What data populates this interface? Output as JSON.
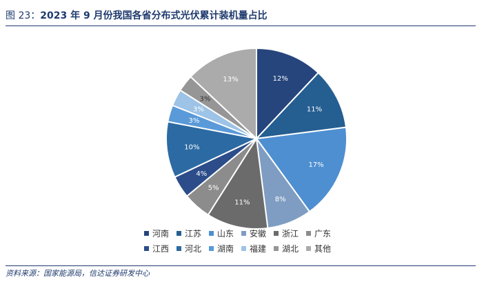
{
  "header": {
    "prefix": "图 23：",
    "title": "2023 年 9 月份我国各省分布式光伏累计装机量占比"
  },
  "source": "资料来源：国家能源局，信达证券研发中心",
  "chart_data": {
    "type": "pie",
    "title": "",
    "slices": [
      {
        "name": "河南",
        "value": 12,
        "label": "12%",
        "color": "#26457c",
        "label_color": "#ffffff"
      },
      {
        "name": "江苏",
        "value": 11,
        "label": "11%",
        "color": "#255e91",
        "label_color": "#ffffff"
      },
      {
        "name": "山东",
        "value": 17,
        "label": "17%",
        "color": "#4e8fd1",
        "label_color": "#ffffff"
      },
      {
        "name": "安徽",
        "value": 8,
        "label": "8%",
        "color": "#7f9dc2",
        "label_color": "#ffffff"
      },
      {
        "name": "浙江",
        "value": 11,
        "label": "11%",
        "color": "#6b6b6b",
        "label_color": "#ffffff"
      },
      {
        "name": "广东",
        "value": 5,
        "label": "5%",
        "color": "#8c8c8c",
        "label_color": "#ffffff"
      },
      {
        "name": "江西",
        "value": 4,
        "label": "4%",
        "color": "#2c4d8a",
        "label_color": "#ffffff"
      },
      {
        "name": "河北",
        "value": 10,
        "label": "10%",
        "color": "#2c6aa3",
        "label_color": "#ffffff"
      },
      {
        "name": "湖南",
        "value": 3,
        "label": "3%",
        "color": "#5a9ad8",
        "label_color": "#ffffff"
      },
      {
        "name": "福建",
        "value": 3,
        "label": "3%",
        "color": "#9dc3e6",
        "label_color": "#ffffff"
      },
      {
        "name": "湖北",
        "value": 3,
        "label": "3%",
        "color": "#969696",
        "label_color": "#333333"
      },
      {
        "name": "其他",
        "value": 13,
        "label": "13%",
        "color": "#ababab",
        "label_color": "#ffffff"
      }
    ],
    "legend_position": "bottom"
  }
}
